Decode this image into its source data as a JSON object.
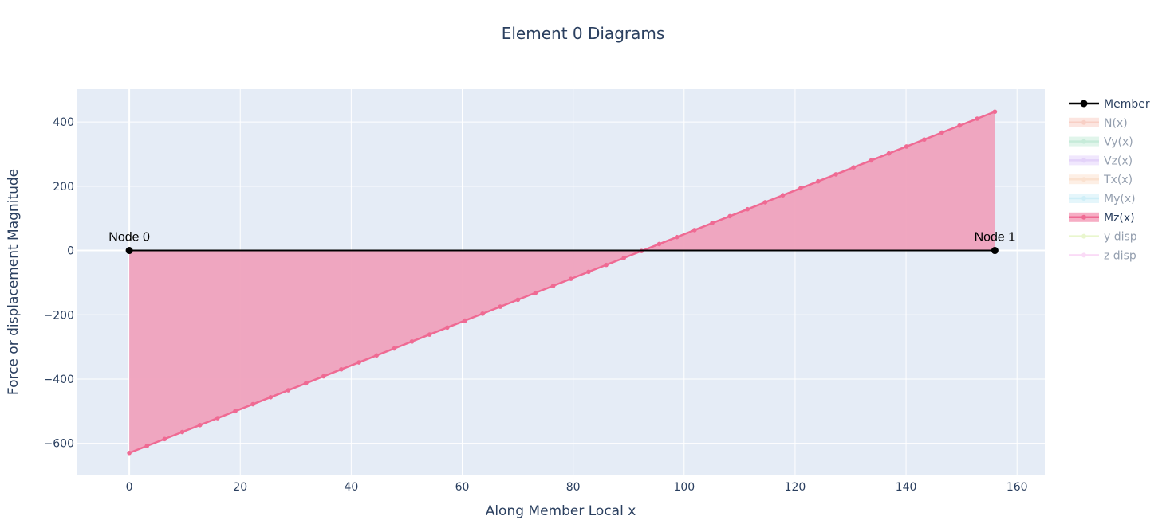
{
  "chart_data": {
    "type": "line",
    "title": "Element 0 Diagrams",
    "xlabel": "Along Member Local x",
    "ylabel": "Force or displacement Magnitude",
    "xlim": [
      -9.5,
      165
    ],
    "ylim": [
      -700,
      502
    ],
    "x_ticks": [
      0,
      20,
      40,
      60,
      80,
      100,
      120,
      140,
      160
    ],
    "y_ticks": [
      -600,
      -400,
      -200,
      0,
      200,
      400
    ],
    "x_tick_labels": [
      "0",
      "20",
      "40",
      "60",
      "80",
      "100",
      "120",
      "140",
      "160"
    ],
    "y_tick_labels": [
      "−600",
      "−400",
      "−200",
      "0",
      "200",
      "400"
    ],
    "grid": true,
    "legend_position": "right",
    "member": {
      "name": "Member",
      "x": [
        0,
        156
      ],
      "y": [
        0,
        0
      ],
      "color": "#000000"
    },
    "mz": {
      "name": "Mz(x)",
      "x_start": 0,
      "x_end": 156,
      "y_start": -630,
      "y_end": 432,
      "n_points": 50,
      "color": "#ef6a93",
      "fill": "#efa2bd"
    },
    "annotations": [
      {
        "text": "Node 0",
        "x": 0,
        "y": 0
      },
      {
        "text": "Node 1",
        "x": 156,
        "y": 0
      }
    ],
    "legend": [
      {
        "name": "Member",
        "color": "#000000",
        "active": true,
        "style": "member"
      },
      {
        "name": "N(x)",
        "color": "#f2a08d",
        "active": false,
        "style": "fill"
      },
      {
        "name": "Vy(x)",
        "color": "#8fd9b4",
        "active": false,
        "style": "fill"
      },
      {
        "name": "Vz(x)",
        "color": "#c9a6f5",
        "active": false,
        "style": "fill"
      },
      {
        "name": "Tx(x)",
        "color": "#f7c5a0",
        "active": false,
        "style": "fill"
      },
      {
        "name": "My(x)",
        "color": "#9fdef0",
        "active": false,
        "style": "fill"
      },
      {
        "name": "Mz(x)",
        "color": "#ef6a93",
        "active": true,
        "style": "fill"
      },
      {
        "name": "y disp",
        "color": "#d4ef9e",
        "active": false,
        "style": "line"
      },
      {
        "name": "z disp",
        "color": "#f7b9ef",
        "active": false,
        "style": "line"
      }
    ]
  }
}
